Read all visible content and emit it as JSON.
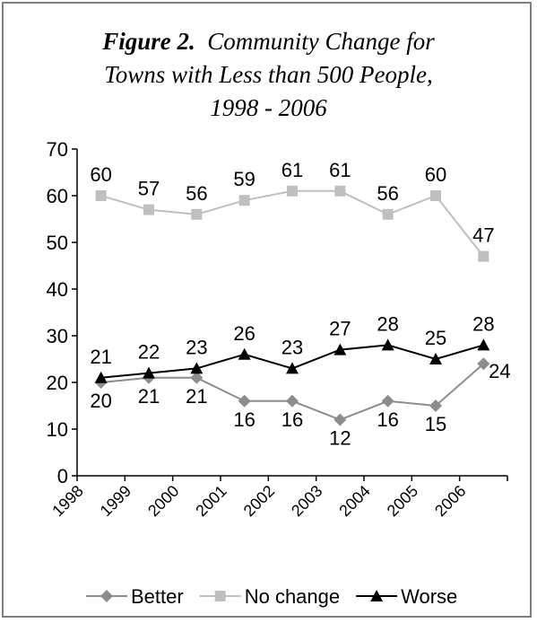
{
  "chart_data": {
    "type": "line",
    "title_figure": "Figure 2.",
    "title_rest_line1": "Community Change for",
    "title_line2": "Towns with Less than 500 People,",
    "title_line3": "1998 - 2006",
    "categories": [
      "1998",
      "1999",
      "2000",
      "2001",
      "2002",
      "2003",
      "2004",
      "2005",
      "2006"
    ],
    "ylim": [
      0,
      70
    ],
    "yticks": [
      0,
      10,
      20,
      30,
      40,
      50,
      60,
      70
    ],
    "grid": false,
    "legend_position": "bottom",
    "series": [
      {
        "name": "Better",
        "color": "#8c8c8c",
        "marker": "diamond",
        "values": [
          20,
          21,
          21,
          16,
          16,
          12,
          16,
          15,
          24
        ]
      },
      {
        "name": "No change",
        "color": "#bfbfbf",
        "marker": "square",
        "values": [
          60,
          57,
          56,
          59,
          61,
          61,
          56,
          60,
          47
        ]
      },
      {
        "name": "Worse",
        "color": "#000000",
        "marker": "triangle",
        "values": [
          21,
          22,
          23,
          26,
          23,
          27,
          28,
          25,
          28
        ]
      }
    ]
  }
}
